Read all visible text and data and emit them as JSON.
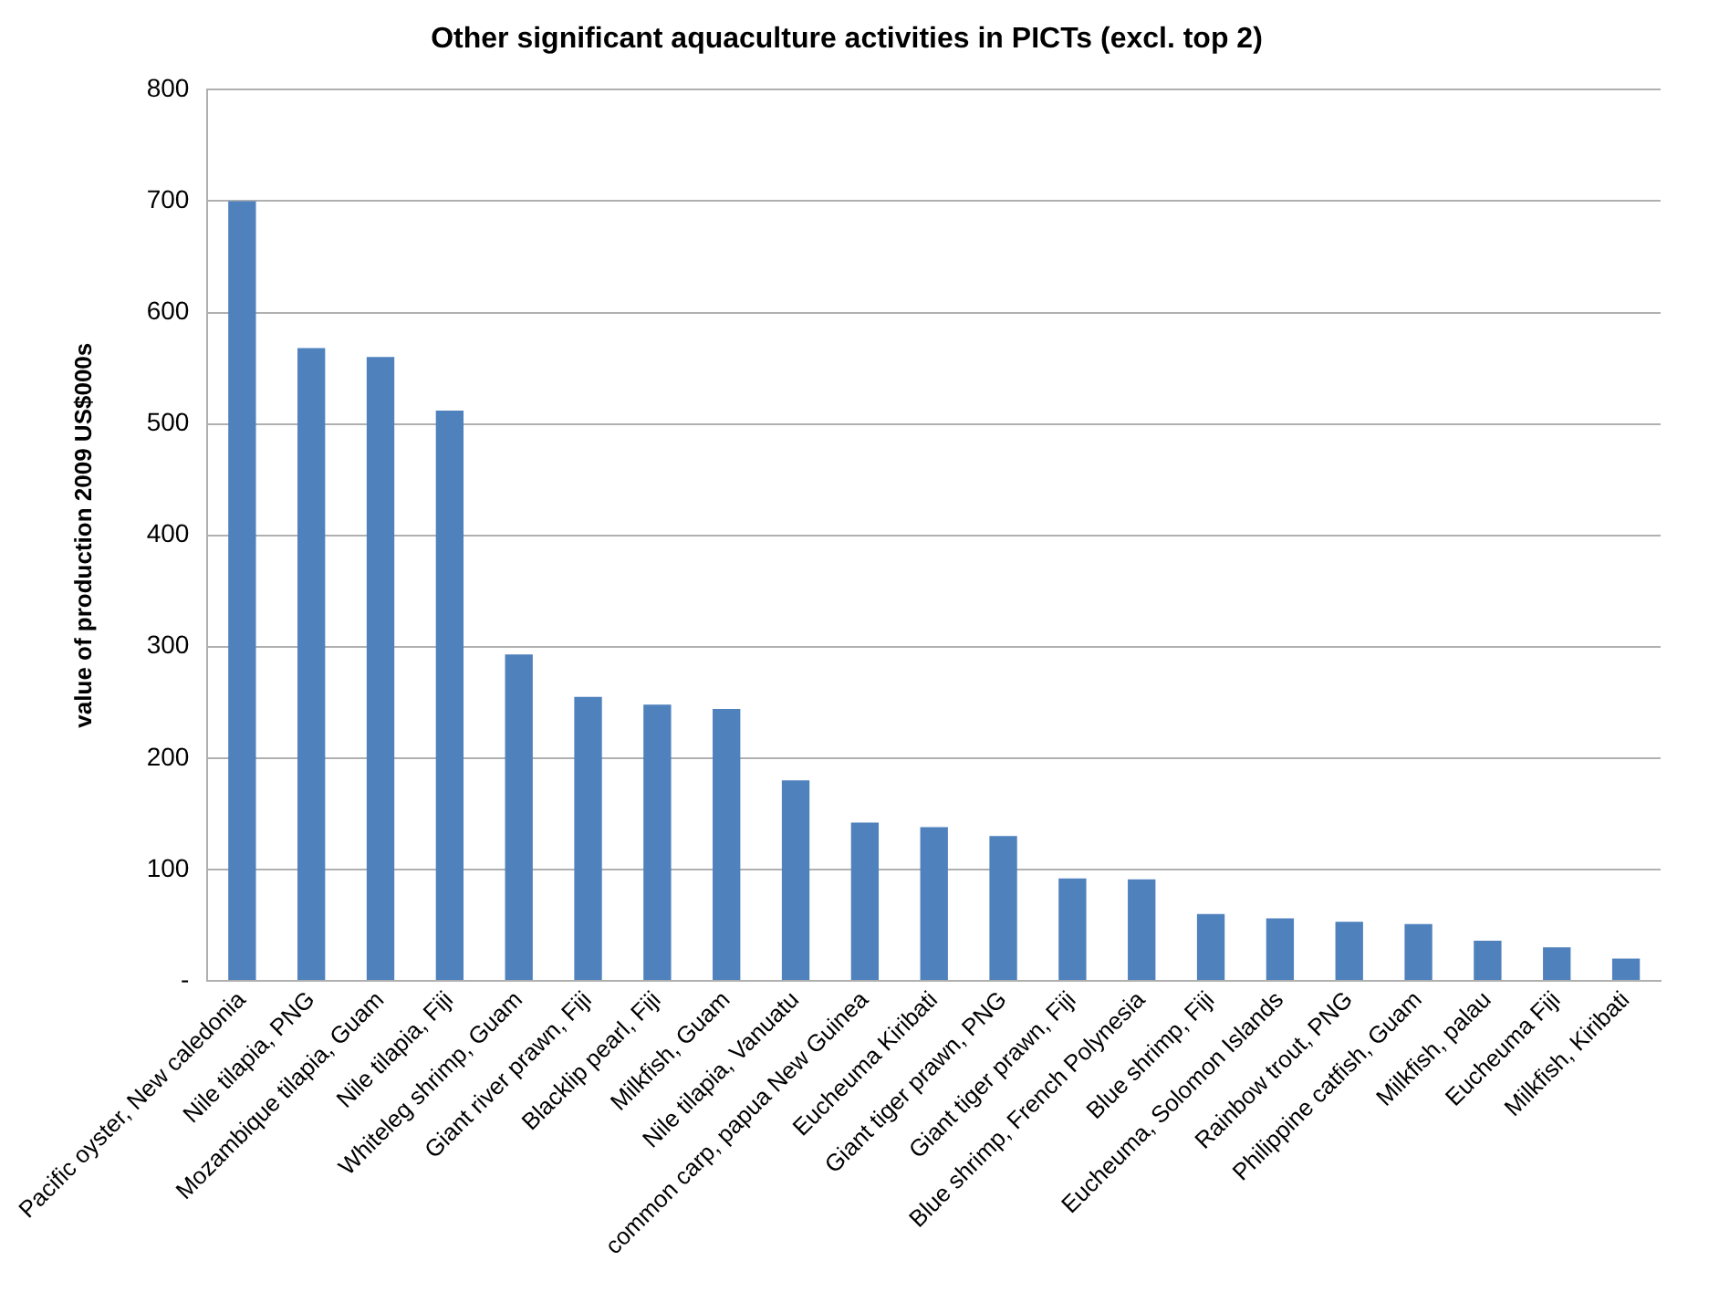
{
  "chart_data": {
    "type": "bar",
    "title": "Other significant aquaculture activities in PICTs (excl. top 2)",
    "ylabel": "value of production 2009 US$000s",
    "categories": [
      "Pacific oyster, New caledonia",
      "Nile tilapia, PNG",
      "Mozambique tilapia, Guam",
      "Nile tilapia, Fiji",
      "Whiteleg shrimp, Guam",
      "Giant river prawn, Fiji",
      "Blacklip pearl, Fiji",
      "Milkfish, Guam",
      "Nile tilapia, Vanuatu",
      "common carp, papua New Guinea",
      "Eucheuma Kiribati",
      "Giant tiger prawn, PNG",
      "Giant tiger prawn, Fiji",
      "Blue shrimp, French Polynesia",
      "Blue shrimp, Fiji",
      "Eucheuma, Solomon Islands",
      "Rainbow trout, PNG",
      "Philippine catfish, Guam",
      "Milkfish, palau",
      "Eucheuma Fiji",
      "Milkfish, Kiribati"
    ],
    "values": [
      700,
      568,
      560,
      512,
      293,
      255,
      248,
      244,
      180,
      142,
      138,
      130,
      92,
      91,
      60,
      56,
      53,
      51,
      36,
      30,
      20
    ],
    "color": "#4f81bd",
    "ylim": [
      0,
      800
    ],
    "yticks": [
      {
        "value": 0,
        "label": "-"
      },
      100,
      200,
      300,
      400,
      500,
      600,
      700,
      800
    ],
    "grid": "y",
    "legend": false
  }
}
